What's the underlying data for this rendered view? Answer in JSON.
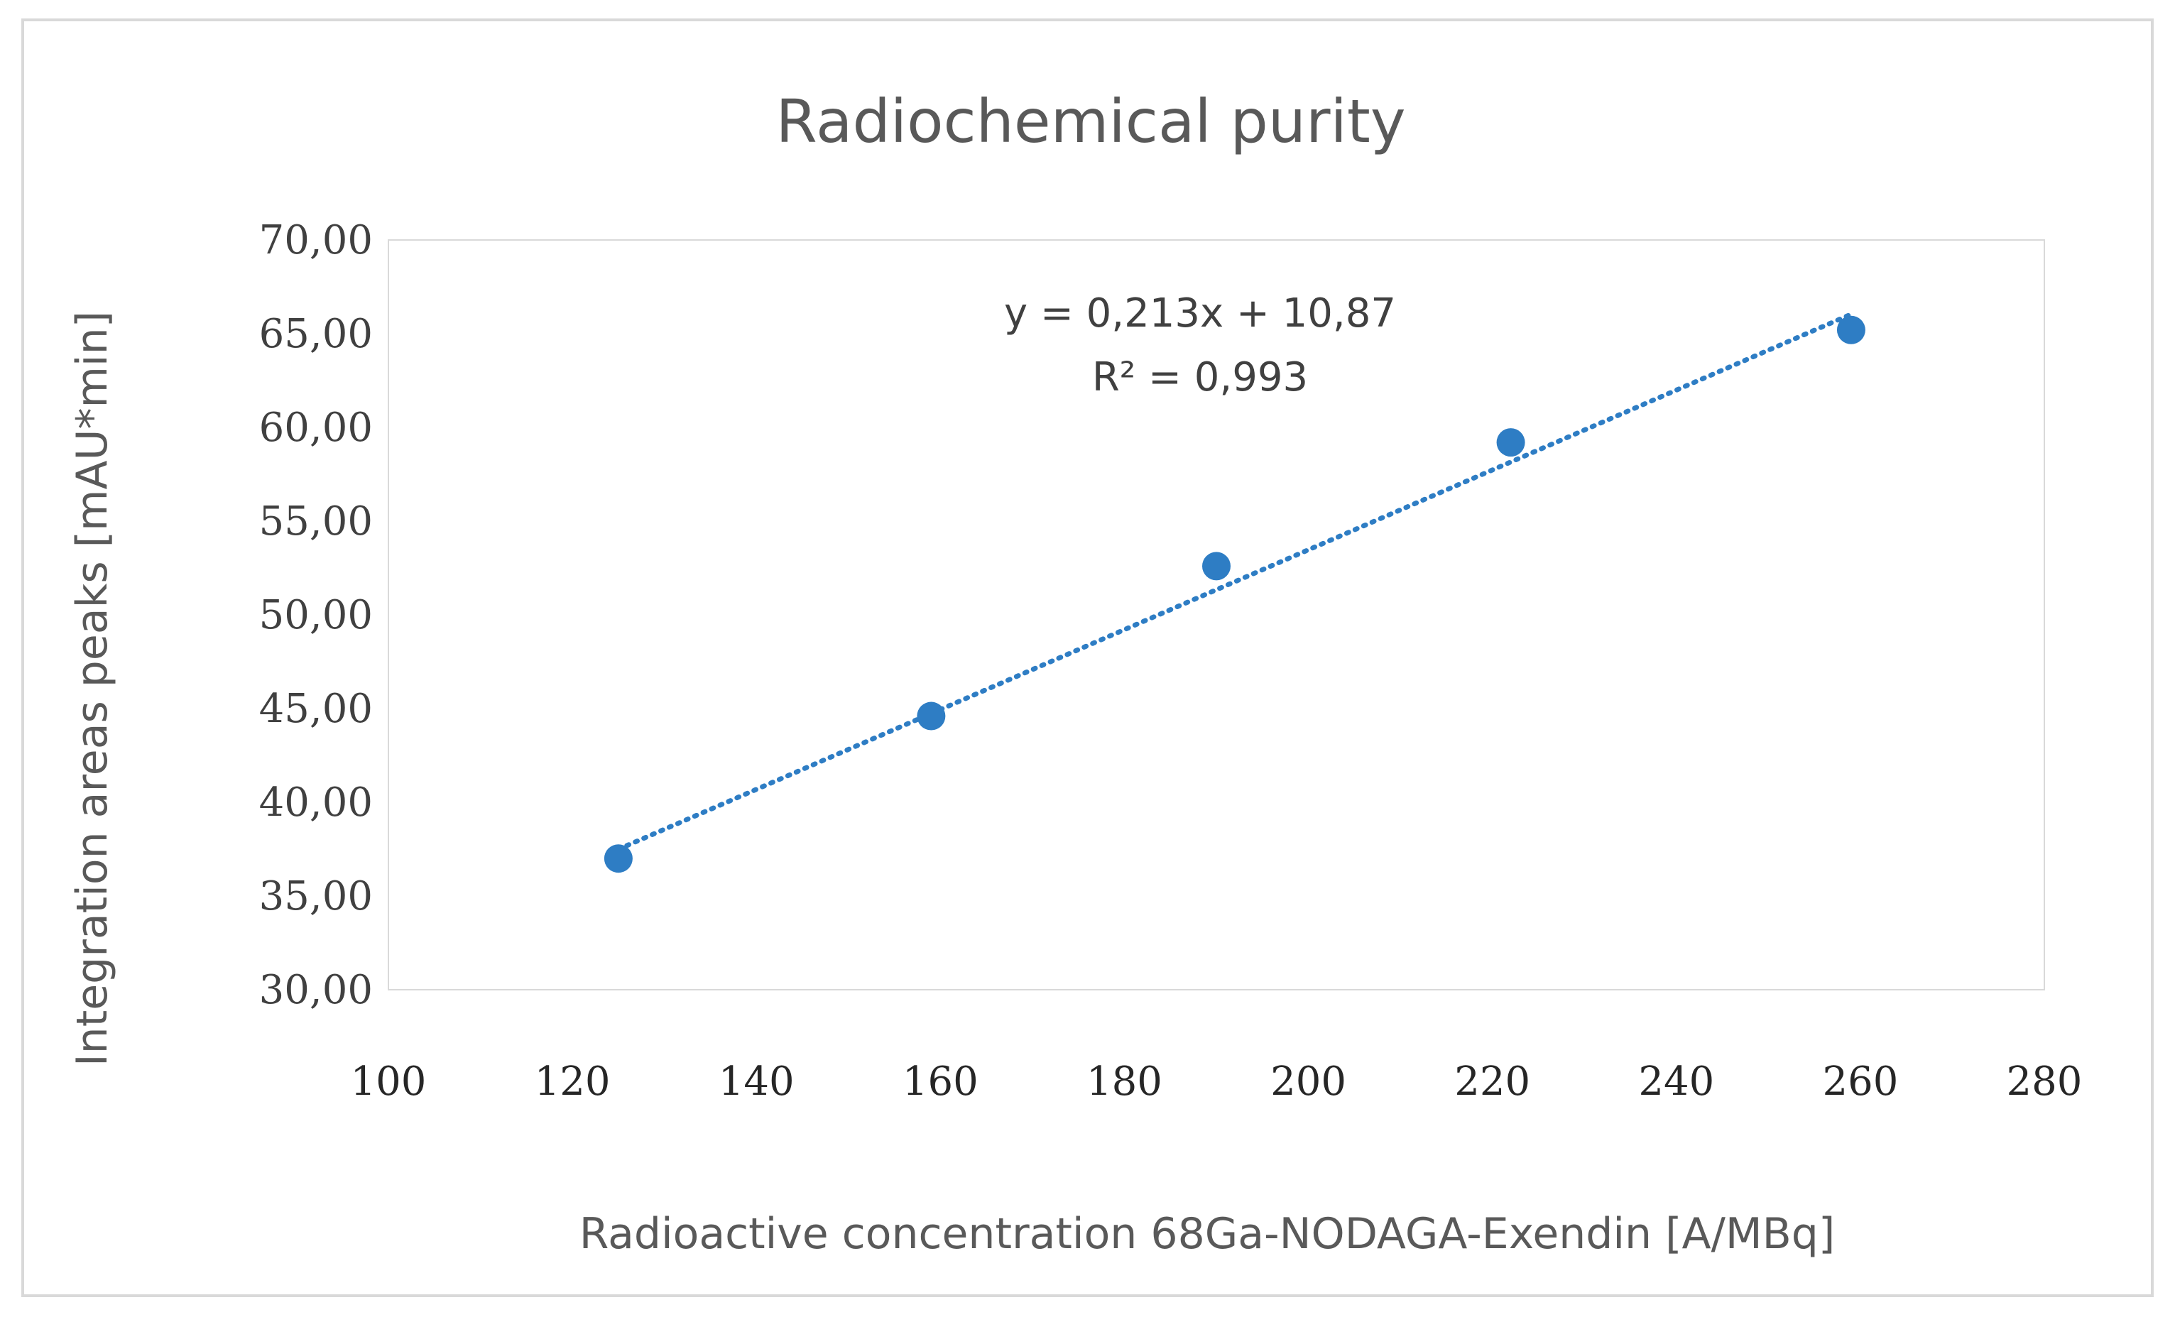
{
  "chart_data": {
    "type": "scatter",
    "title": "Radiochemical purity",
    "xlabel": "Radioactive concentration 68Ga-NODAGA-Exendin [A/MBq]",
    "ylabel": "Integration areas peaks [mAU*min]",
    "xlim": [
      100,
      280
    ],
    "ylim": [
      30,
      70
    ],
    "x_ticks": [
      "100",
      "120",
      "140",
      "160",
      "180",
      "200",
      "220",
      "240",
      "260",
      "280"
    ],
    "y_ticks": [
      "30,00",
      "35,00",
      "40,00",
      "45,00",
      "50,00",
      "55,00",
      "60,00",
      "65,00",
      "70,00"
    ],
    "grid": false,
    "series": [
      {
        "name": "Radiochemical purity",
        "x": [
          125,
          159,
          190,
          222,
          259
        ],
        "y": [
          37.0,
          44.6,
          52.6,
          59.2,
          65.2
        ],
        "color": "#2E7DC4"
      }
    ],
    "trendline": {
      "type": "linear",
      "slope": 0.213,
      "intercept": 10.87,
      "x_range": [
        125,
        259
      ],
      "equation_label": "y = 0,213x + 10,87",
      "r2_label": "R² = 0,993",
      "style": "dotted",
      "color": "#2E7DC4"
    }
  }
}
